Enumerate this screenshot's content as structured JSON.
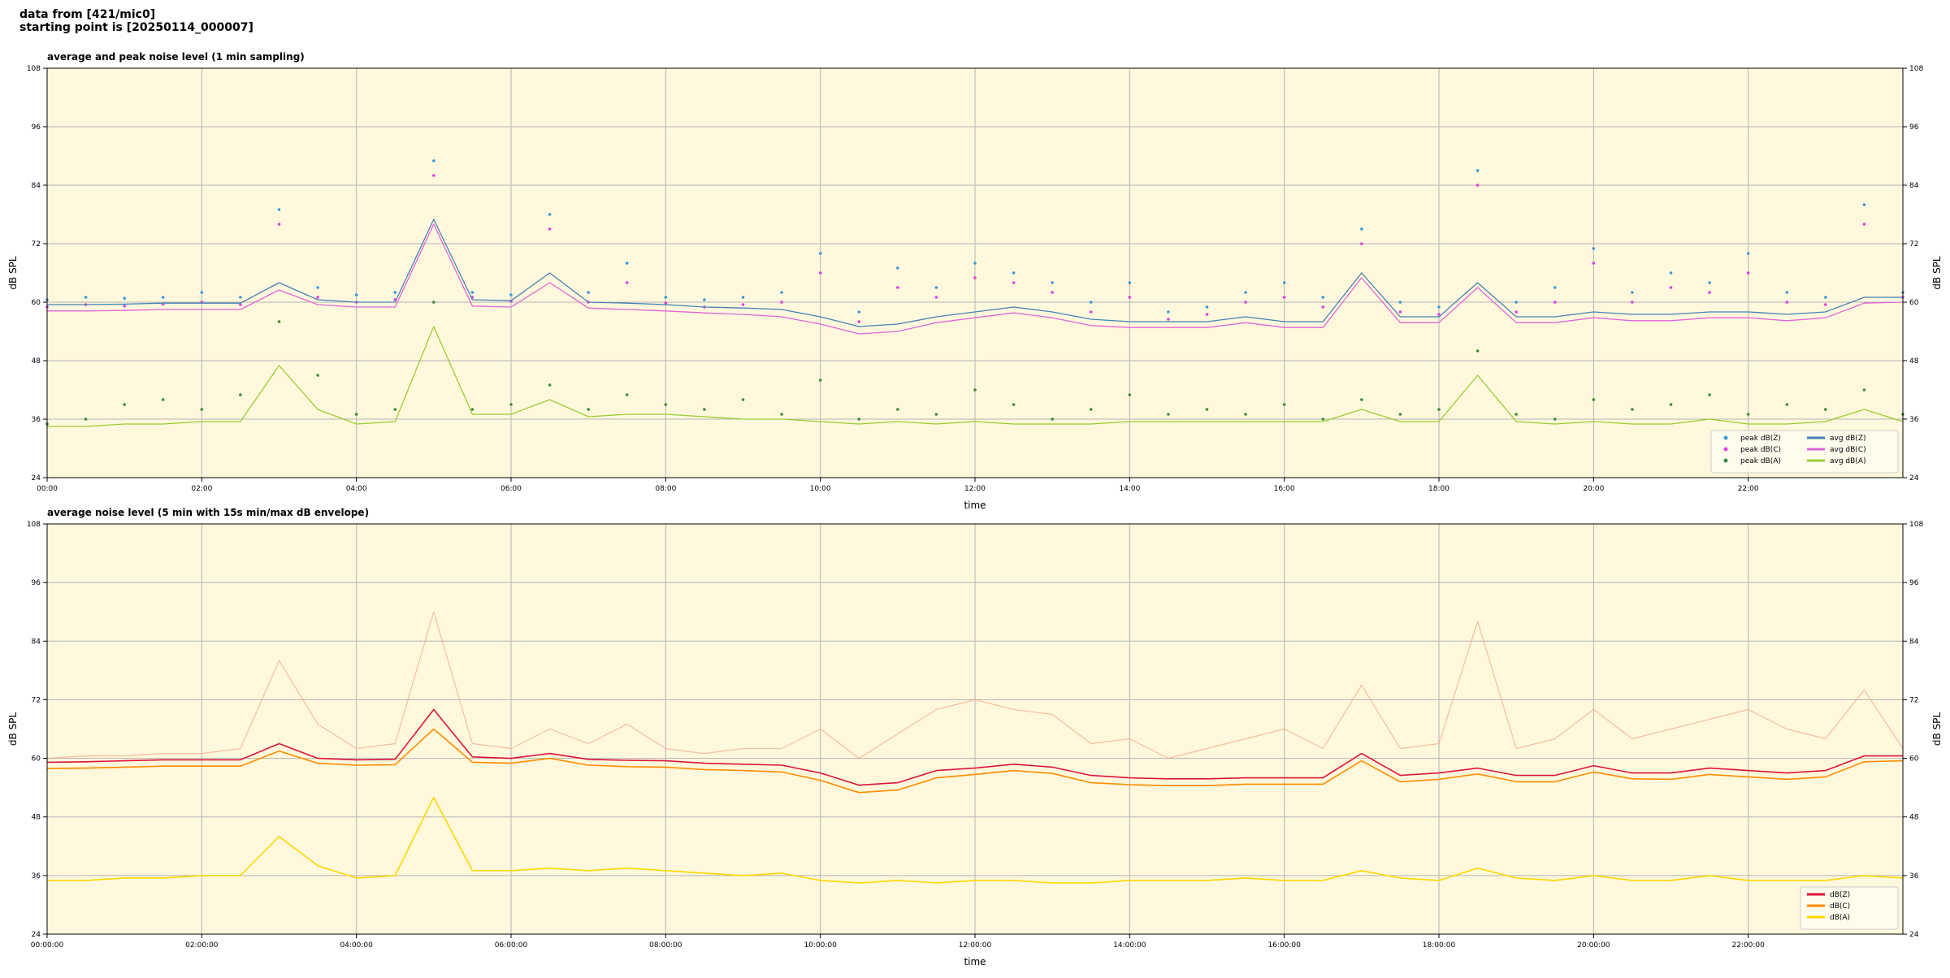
{
  "header": {
    "line1": "data from [421/mic0]",
    "line2": "starting point is [20250114_000007]"
  },
  "chart_data": [
    {
      "type": "line",
      "title": "average and peak noise level (1 min sampling)",
      "xlabel": "time",
      "ylabel": "dB SPL",
      "xlim": [
        0,
        24
      ],
      "xticks": [
        {
          "value": 0,
          "label": "00:00"
        },
        {
          "value": 2,
          "label": "02:00"
        },
        {
          "value": 4,
          "label": "04:00"
        },
        {
          "value": 6,
          "label": "06:00"
        },
        {
          "value": 8,
          "label": "08:00"
        },
        {
          "value": 10,
          "label": "10:00"
        },
        {
          "value": 12,
          "label": "12:00"
        },
        {
          "value": 14,
          "label": "14:00"
        },
        {
          "value": 16,
          "label": "16:00"
        },
        {
          "value": 18,
          "label": "18:00"
        },
        {
          "value": 20,
          "label": "20:00"
        },
        {
          "value": 22,
          "label": "22:00"
        }
      ],
      "ylim": [
        24,
        108
      ],
      "yticks": [
        24,
        36,
        48,
        60,
        72,
        84,
        96,
        108
      ],
      "grid": true,
      "legend": "lower right",
      "x": [
        0,
        0.5,
        1,
        1.5,
        2,
        2.5,
        3,
        3.5,
        4,
        4.5,
        5,
        5.5,
        6,
        6.5,
        7,
        7.5,
        8,
        8.5,
        9,
        9.5,
        10,
        10.5,
        11,
        11.5,
        12,
        12.5,
        13,
        13.5,
        14,
        14.5,
        15,
        15.5,
        16,
        16.5,
        17,
        17.5,
        18,
        18.5,
        19,
        19.5,
        20,
        20.5,
        21,
        21.5,
        22,
        22.5,
        23,
        23.5,
        24
      ],
      "series": [
        {
          "name": "peak dB(Z)",
          "kind": "scatter",
          "color": "#3a9ad9",
          "values": [
            60.5,
            61,
            60.8,
            61,
            62,
            61,
            79,
            63,
            61.5,
            62,
            89,
            62,
            61.5,
            78,
            62,
            68,
            61,
            60.5,
            61,
            62,
            70,
            58,
            67,
            63,
            68,
            66,
            64,
            60,
            64,
            58,
            59,
            62,
            64,
            61,
            75,
            60,
            59,
            87,
            60,
            63,
            71,
            62,
            66,
            64,
            70,
            62,
            61,
            80,
            62
          ]
        },
        {
          "name": "peak dB(C)",
          "kind": "scatter",
          "color": "#e040e0",
          "values": [
            59,
            59.5,
            59.2,
            59.6,
            60,
            59.5,
            76,
            61,
            60,
            60.5,
            86,
            61,
            60.2,
            75,
            60,
            64,
            59.8,
            59,
            59.5,
            60,
            66,
            56,
            63,
            61,
            65,
            64,
            62,
            58,
            61,
            56.5,
            57.5,
            60,
            61,
            59,
            72,
            58,
            57.5,
            84,
            58,
            60,
            68,
            60,
            63,
            62,
            66,
            60,
            59.5,
            76,
            61
          ]
        },
        {
          "name": "peak dB(A)",
          "kind": "scatter",
          "color": "#3c8c3c",
          "values": [
            35,
            36,
            39,
            40,
            38,
            41,
            56,
            45,
            37,
            38,
            60,
            38,
            39,
            43,
            38,
            41,
            39,
            38,
            40,
            37,
            44,
            36,
            38,
            37,
            42,
            39,
            36,
            38,
            41,
            37,
            38,
            37,
            39,
            36,
            40,
            37,
            38,
            50,
            37,
            36,
            40,
            38,
            39,
            41,
            37,
            39,
            38,
            42,
            37
          ]
        },
        {
          "name": "avg dB(Z)",
          "kind": "line",
          "color": "#4682b4",
          "values": [
            59.5,
            59.5,
            59.6,
            59.8,
            59.8,
            59.8,
            64,
            60.5,
            60,
            60,
            77,
            60.5,
            60.3,
            66,
            60,
            59.8,
            59.5,
            59,
            58.8,
            58.5,
            57,
            55,
            55.5,
            57,
            58,
            59,
            58,
            56.5,
            56,
            56,
            56,
            57,
            56,
            56,
            66,
            57,
            57,
            64,
            57,
            57,
            58,
            57.5,
            57.5,
            58,
            58,
            57.5,
            58,
            61,
            61
          ]
        },
        {
          "name": "avg dB(C)",
          "kind": "line",
          "color": "#e066d6",
          "values": [
            58.2,
            58.2,
            58.3,
            58.5,
            58.5,
            58.5,
            62.5,
            59.5,
            59,
            59,
            76,
            59.2,
            59,
            64,
            58.8,
            58.5,
            58.2,
            57.8,
            57.5,
            57,
            55.5,
            53.5,
            54,
            55.8,
            56.8,
            57.8,
            56.8,
            55.2,
            54.8,
            54.8,
            54.8,
            55.8,
            54.8,
            54.8,
            65,
            55.8,
            55.8,
            63,
            55.8,
            55.8,
            56.8,
            56.2,
            56.2,
            56.8,
            56.8,
            56.2,
            56.8,
            59.8,
            60
          ]
        },
        {
          "name": "avg dB(A)",
          "kind": "line",
          "color": "#9acd32",
          "values": [
            34.5,
            34.5,
            35,
            35,
            35.5,
            35.5,
            47,
            38,
            35,
            35.5,
            55,
            37,
            37,
            40,
            36.5,
            37,
            37,
            36.5,
            36,
            36,
            35.5,
            35,
            35.5,
            35,
            35.5,
            35,
            35,
            35,
            35.5,
            35.5,
            35.5,
            35.5,
            35.5,
            35.5,
            38,
            35.5,
            35.5,
            45,
            35.5,
            35,
            35.5,
            35,
            35,
            36,
            35,
            35,
            35.5,
            38,
            35.5
          ]
        }
      ]
    },
    {
      "type": "line",
      "title": "average noise level (5 min with 15s min/max dB envelope)",
      "xlabel": "time",
      "ylabel": "dB SPL",
      "xlim": [
        0,
        24
      ],
      "xticks": [
        {
          "value": 0,
          "label": "00:00:00"
        },
        {
          "value": 2,
          "label": "02:00:00"
        },
        {
          "value": 4,
          "label": "04:00:00"
        },
        {
          "value": 6,
          "label": "06:00:00"
        },
        {
          "value": 8,
          "label": "08:00:00"
        },
        {
          "value": 10,
          "label": "10:00:00"
        },
        {
          "value": 12,
          "label": "12:00:00"
        },
        {
          "value": 14,
          "label": "14:00:00"
        },
        {
          "value": 16,
          "label": "16:00:00"
        },
        {
          "value": 18,
          "label": "18:00:00"
        },
        {
          "value": 20,
          "label": "20:00:00"
        },
        {
          "value": 22,
          "label": "22:00:00"
        }
      ],
      "ylim": [
        24,
        108
      ],
      "yticks": [
        24,
        36,
        48,
        60,
        72,
        84,
        96,
        108
      ],
      "grid": true,
      "legend": "lower right",
      "x": [
        0,
        0.5,
        1,
        1.5,
        2,
        2.5,
        3,
        3.5,
        4,
        4.5,
        5,
        5.5,
        6,
        6.5,
        7,
        7.5,
        8,
        8.5,
        9,
        9.5,
        10,
        10.5,
        11,
        11.5,
        12,
        12.5,
        13,
        13.5,
        14,
        14.5,
        15,
        15.5,
        16,
        16.5,
        17,
        17.5,
        18,
        18.5,
        19,
        19.5,
        20,
        20.5,
        21,
        21.5,
        22,
        22.5,
        23,
        23.5,
        24
      ],
      "series": [
        {
          "kind": "envelope",
          "color": "#f2a48c",
          "values": [
            60,
            60.5,
            60.5,
            61,
            61,
            62,
            80,
            67,
            62,
            63,
            90,
            63,
            62,
            66,
            63,
            67,
            62,
            61,
            62,
            62,
            66,
            60,
            65,
            70,
            72,
            70,
            69,
            63,
            64,
            60,
            62,
            64,
            66,
            62,
            75,
            62,
            63,
            88,
            62,
            64,
            70,
            64,
            66,
            68,
            70,
            66,
            64,
            74,
            62
          ]
        },
        {
          "name": "dB(Z)",
          "kind": "line",
          "color": "#dc143c",
          "values": [
            59.2,
            59.3,
            59.5,
            59.7,
            59.7,
            59.7,
            63,
            60,
            59.7,
            59.8,
            70,
            60.3,
            60,
            61,
            59.8,
            59.6,
            59.5,
            59,
            58.8,
            58.6,
            57,
            54.5,
            55,
            57.5,
            58,
            58.8,
            58.2,
            56.5,
            56,
            55.8,
            55.8,
            56,
            56,
            56,
            61,
            56.5,
            57,
            58,
            56.5,
            56.5,
            58.5,
            57,
            57,
            58,
            57.5,
            57,
            57.5,
            60.5,
            60.5
          ]
        },
        {
          "name": "dB(C)",
          "kind": "line",
          "color": "#ff8c00",
          "values": [
            57.9,
            58,
            58.2,
            58.4,
            58.4,
            58.4,
            61.5,
            59,
            58.6,
            58.7,
            66,
            59.2,
            59,
            60,
            58.6,
            58.3,
            58.2,
            57.7,
            57.5,
            57.2,
            55.5,
            53,
            53.5,
            56,
            56.7,
            57.5,
            56.9,
            55,
            54.6,
            54.4,
            54.4,
            54.7,
            54.7,
            54.7,
            59.5,
            55.2,
            55.7,
            56.8,
            55.2,
            55.2,
            57.2,
            55.8,
            55.7,
            56.7,
            56.2,
            55.7,
            56.2,
            59.3,
            59.5
          ]
        },
        {
          "name": "dB(A)",
          "kind": "line",
          "color": "#ffd700",
          "values": [
            35,
            35,
            35.5,
            35.5,
            36,
            36,
            44,
            38,
            35.5,
            36,
            52,
            37,
            37,
            37.5,
            37,
            37.5,
            37,
            36.5,
            36,
            36.5,
            35,
            34.5,
            35,
            34.5,
            35,
            35,
            34.5,
            34.5,
            35,
            35,
            35,
            35.5,
            35,
            35,
            37,
            35.5,
            35,
            37.5,
            35.5,
            35,
            36,
            35,
            35,
            36,
            35,
            35,
            35,
            36,
            35.5
          ]
        }
      ]
    }
  ]
}
